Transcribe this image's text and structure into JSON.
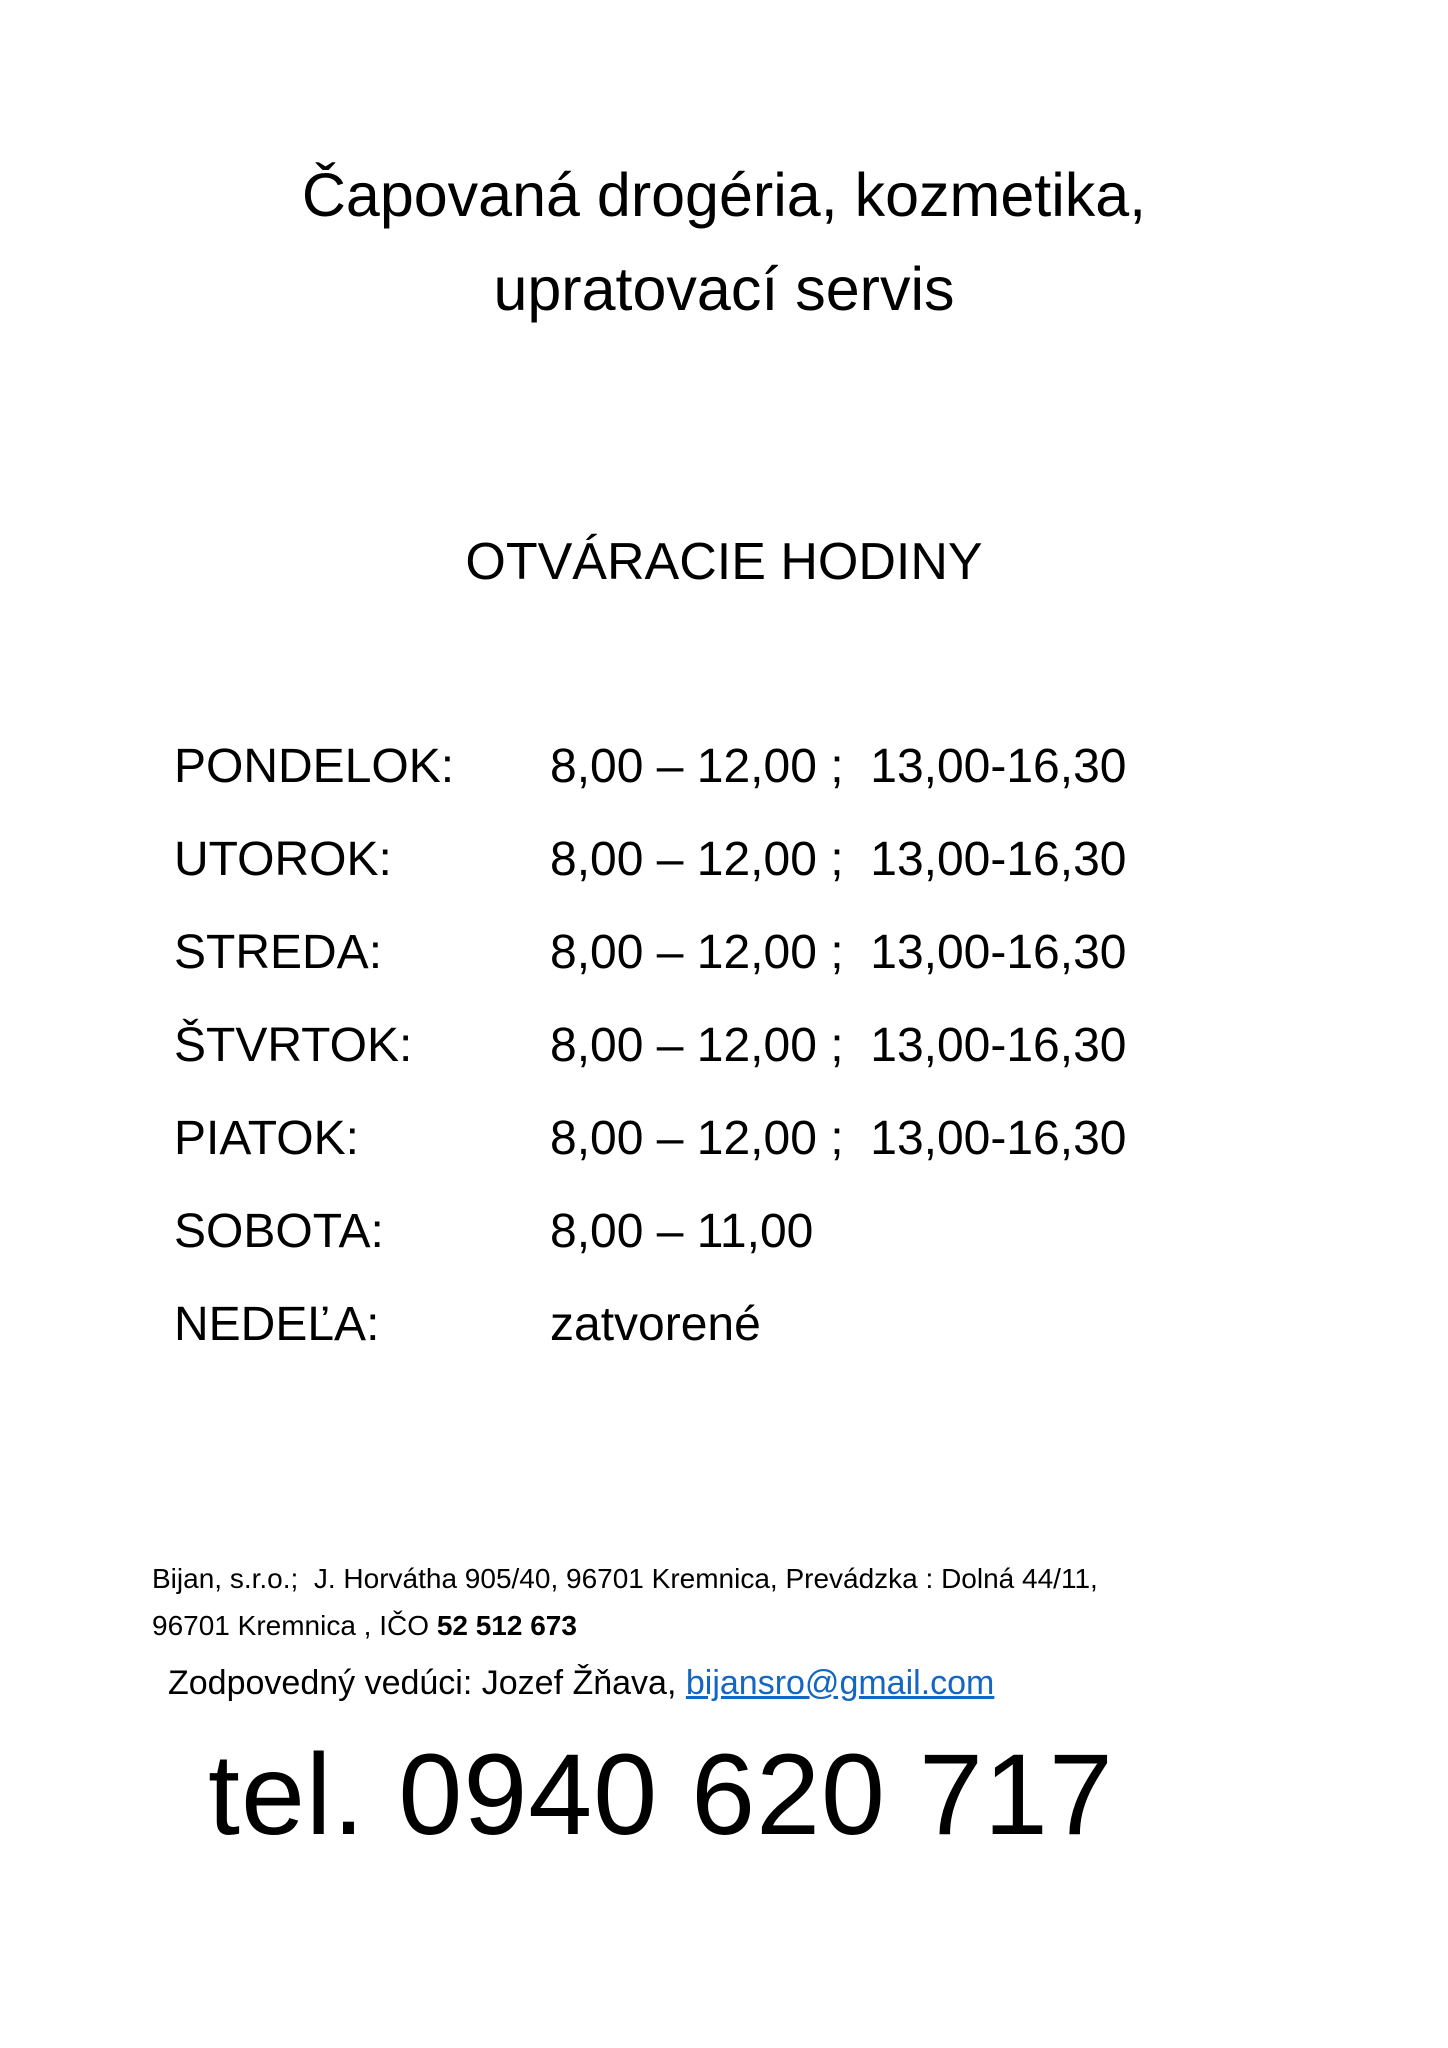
{
  "page": {
    "title_line1": "Čapovaná drogéria, kozmetika,",
    "title_line2": "upratovací servis",
    "section_heading": "OTVÁRACIE HODINY"
  },
  "hours": {
    "rows": [
      {
        "day": "PONDELOK:",
        "time": "8,00 – 12,00 ;  13,00-16,30"
      },
      {
        "day": "UTOROK:",
        "time": "8,00 – 12,00 ;  13,00-16,30"
      },
      {
        "day": "STREDA:",
        "time": "8,00 – 12,00 ;  13,00-16,30"
      },
      {
        "day": "ŠTVRTOK:",
        "time": "8,00 – 12,00 ;  13,00-16,30"
      },
      {
        "day": "PIATOK:",
        "time": "8,00 – 12,00 ;  13,00-16,30"
      },
      {
        "day": "SOBOTA:",
        "time": "8,00 – 11,00"
      },
      {
        "day": "NEDEĽA:",
        "time": "zatvorené"
      }
    ]
  },
  "footer": {
    "address_line1": "Bijan, s.r.o.;  J. Horvátha 905/40, 96701 Kremnica, Prevádzka : Dolná 44/11,",
    "address_line2_prefix": "96701 Kremnica , IČO ",
    "ico": "52 512 673",
    "manager_prefix": "Zodpovedný vedúci: Jozef Žňava, ",
    "email": "bijansro@gmail.com",
    "phone": "tel. 0940 620 717"
  },
  "colors": {
    "text": "#000000",
    "link_blue": "#1366C1",
    "background": "#ffffff"
  }
}
